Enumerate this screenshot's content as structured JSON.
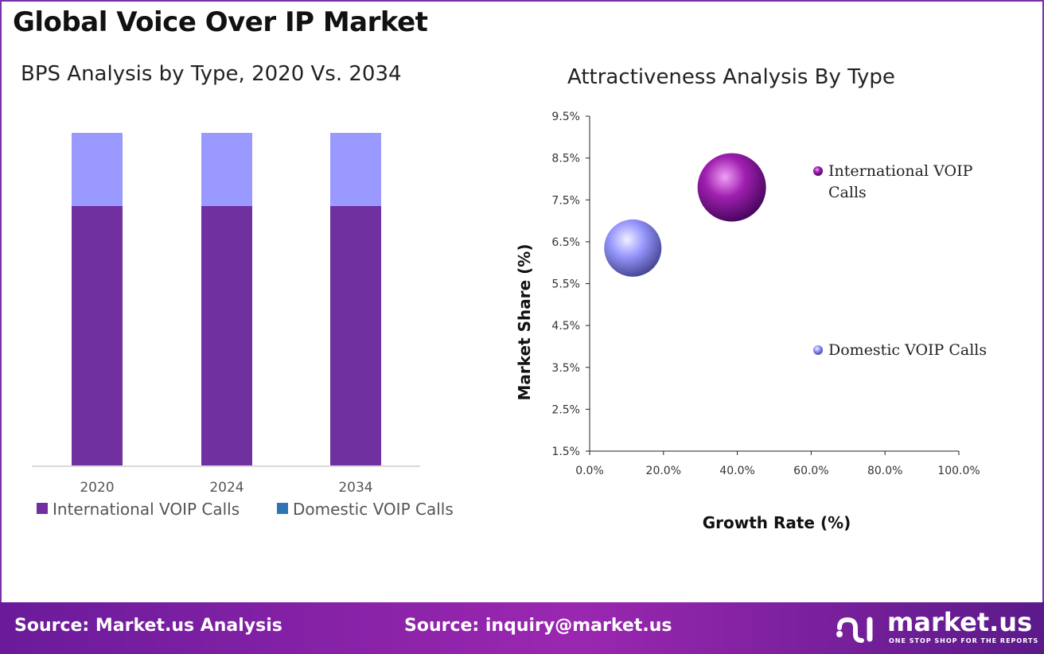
{
  "title": "Global Voice Over IP Market",
  "footer": {
    "source_left": "Source: Market.us Analysis",
    "source_right": "Source: inquiry@market.us",
    "logo_text": "market.us",
    "logo_tagline": "ONE STOP SHOP FOR THE REPORTS"
  },
  "chart_data": [
    {
      "type": "bar",
      "stacked": true,
      "title": "BPS Analysis by Type, 2020 Vs. 2034",
      "categories": [
        "2020",
        "2024",
        "2034"
      ],
      "series": [
        {
          "name": "International VOIP Calls",
          "values": [
            78,
            78,
            78
          ],
          "color": "#7030a0"
        },
        {
          "name": "Domestic VOIP Calls",
          "values": [
            22,
            22,
            22
          ],
          "color": "#9999ff",
          "legend_color": "#2e75b6"
        }
      ],
      "legend": "bottom"
    },
    {
      "type": "scatter",
      "title": "Attractiveness Analysis By Type",
      "xlabel": "Growth Rate (%)",
      "ylabel": "Market Share (%)",
      "xlim": [
        0,
        100
      ],
      "ylim": [
        1.5,
        9.5
      ],
      "xticks": [
        "0.0%",
        "20.0%",
        "40.0%",
        "60.0%",
        "80.0%",
        "100.0%"
      ],
      "yticks": [
        "1.5%",
        "2.5%",
        "3.5%",
        "4.5%",
        "5.5%",
        "6.5%",
        "7.5%",
        "8.5%",
        "9.5%"
      ],
      "series": [
        {
          "name": "International VOIP Calls",
          "x": 38.5,
          "y": 7.8,
          "color": "#a020b0"
        },
        {
          "name": "Domestic VOIP Calls",
          "x": 11.7,
          "y": 6.35,
          "color": "#9999ff"
        }
      ],
      "legend": "right"
    }
  ]
}
